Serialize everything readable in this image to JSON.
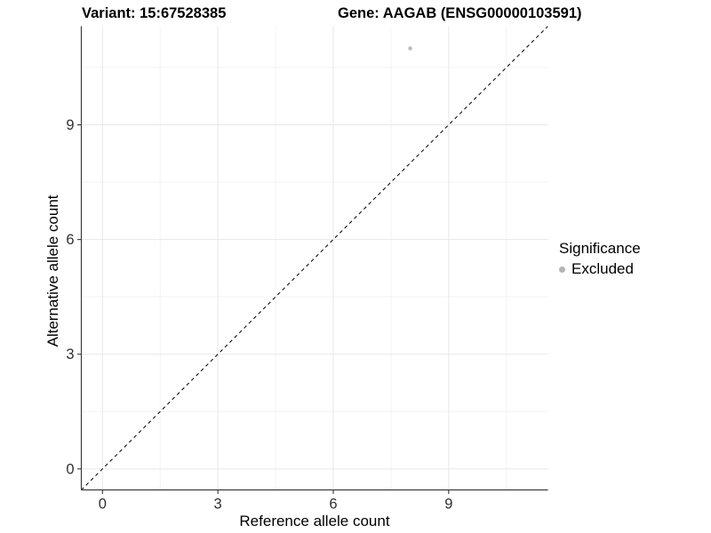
{
  "titles": {
    "variant": "Variant: 15:67528385",
    "gene": "Gene: AAGAB (ENSG00000103591)"
  },
  "chart_data": {
    "type": "scatter",
    "title_left": "Variant: 15:67528385",
    "title_right": "Gene: AAGAB (ENSG00000103591)",
    "xlabel": "Reference allele count",
    "ylabel": "Alternative allele count",
    "xlim": [
      -0.55,
      11.58
    ],
    "ylim": [
      -0.55,
      11.58
    ],
    "x_ticks": [
      0,
      3,
      6,
      9
    ],
    "y_ticks": [
      0,
      3,
      6,
      9
    ],
    "x_minor_ticks": [
      1.5,
      4.5,
      7.5,
      10.5
    ],
    "y_minor_ticks": [
      1.5,
      4.5,
      7.5,
      10.5
    ],
    "grid": "on",
    "legend_position": "right",
    "identity_line": {
      "slope": 1,
      "intercept": 0,
      "style": "dashed",
      "color": "#111111"
    },
    "series": [
      {
        "name": "Excluded",
        "color": "#bdbdbd",
        "points": [
          {
            "x": 8,
            "y": 11
          }
        ]
      }
    ],
    "legend": {
      "title": "Significance",
      "items": [
        {
          "label": "Excluded",
          "color": "#b3b3b3"
        }
      ]
    }
  },
  "colors": {
    "background": "#ffffff",
    "axis_line": "#3c3c3c",
    "tick_mark": "#333333",
    "tick_label": "#303030",
    "grid_major": "#e7e7e7",
    "grid_minor": "#f3f3f3",
    "point": "#bdbdbd",
    "legend_key": "#b3b3b3"
  }
}
